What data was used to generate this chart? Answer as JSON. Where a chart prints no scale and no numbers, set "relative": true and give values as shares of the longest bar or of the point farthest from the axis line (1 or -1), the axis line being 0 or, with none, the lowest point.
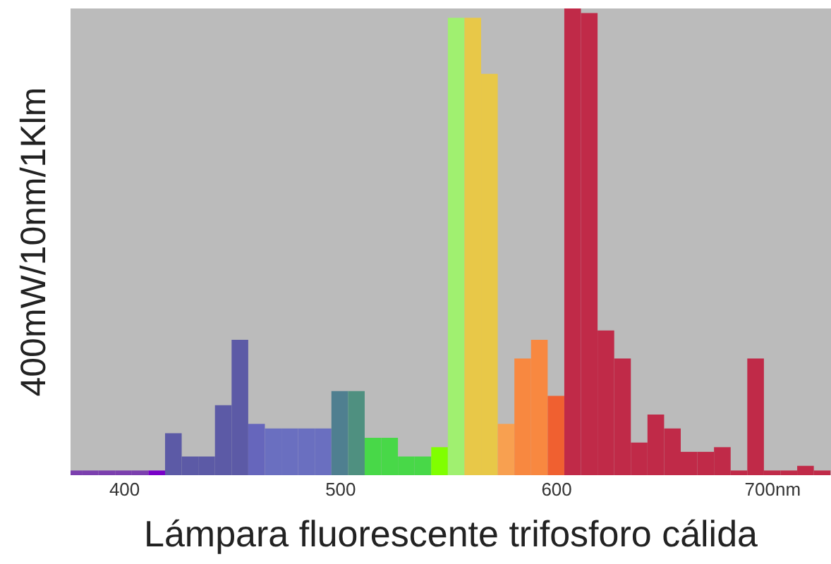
{
  "chart_data": {
    "type": "bar",
    "relative": true,
    "xlabel": "Lámpara fluorescente trifosforo cálida",
    "ylabel": "400mW/10nm/1Klm",
    "x": [
      376.4,
      384.1,
      391.8,
      399.5,
      407.2,
      414.9,
      422.6,
      430.3,
      438.0,
      445.7,
      453.4,
      461.1,
      468.8,
      476.5,
      484.2,
      491.9,
      499.6,
      507.3,
      515.0,
      522.7,
      530.4,
      538.1,
      545.8,
      553.5,
      561.2,
      568.9,
      576.6,
      584.3,
      592.0,
      599.7,
      607.4,
      615.1,
      622.8,
      630.5,
      638.2,
      645.9,
      653.6,
      661.3,
      669.0,
      676.7,
      684.4,
      692.1,
      699.8,
      707.5,
      715.2,
      722.9
    ],
    "values": [
      0.01,
      0.01,
      0.01,
      0.01,
      0.01,
      0.01,
      0.09,
      0.04,
      0.04,
      0.15,
      0.29,
      0.11,
      0.1,
      0.1,
      0.1,
      0.1,
      0.18,
      0.18,
      0.08,
      0.08,
      0.04,
      0.04,
      0.06,
      0.98,
      0.98,
      0.86,
      0.11,
      0.25,
      0.29,
      0.17,
      1,
      0.99,
      0.31,
      0.25,
      0.07,
      0.13,
      0.1,
      0.05,
      0.05,
      0.06,
      0.01,
      0.25,
      0.01,
      0.01,
      0.02,
      0.01
    ],
    "colors": [
      "#7b3fae",
      "#7b3fae",
      "#7b3fae",
      "#7b3fae",
      "#7b3fae",
      "#7800c8",
      "#5c5aa6",
      "#5c5aa6",
      "#5c5aa6",
      "#5c5aa6",
      "#5c5aa6",
      "#6666bc",
      "#6a6fc0",
      "#6a6fc0",
      "#6a6fc0",
      "#6a6fc0",
      "#4f7f90",
      "#4f9080",
      "#48d848",
      "#48d848",
      "#48d848",
      "#48d848",
      "#80ff00",
      "#a0f070",
      "#e8c848",
      "#e8c848",
      "#f8a050",
      "#f88840",
      "#f88840",
      "#f06030",
      "#c02a48",
      "#c02a48",
      "#c02a48",
      "#c02a48",
      "#c02a48",
      "#c02a48",
      "#c02a48",
      "#c02a48",
      "#c02a48",
      "#c02a48",
      "#c02a48",
      "#c02a48",
      "#c02a48",
      "#c02a48",
      "#c02a48",
      "#c02a48"
    ],
    "xlim": [
      375,
      727
    ],
    "xticks": [
      400,
      500,
      600,
      {
        "value": 700,
        "label": "700nm"
      }
    ]
  }
}
